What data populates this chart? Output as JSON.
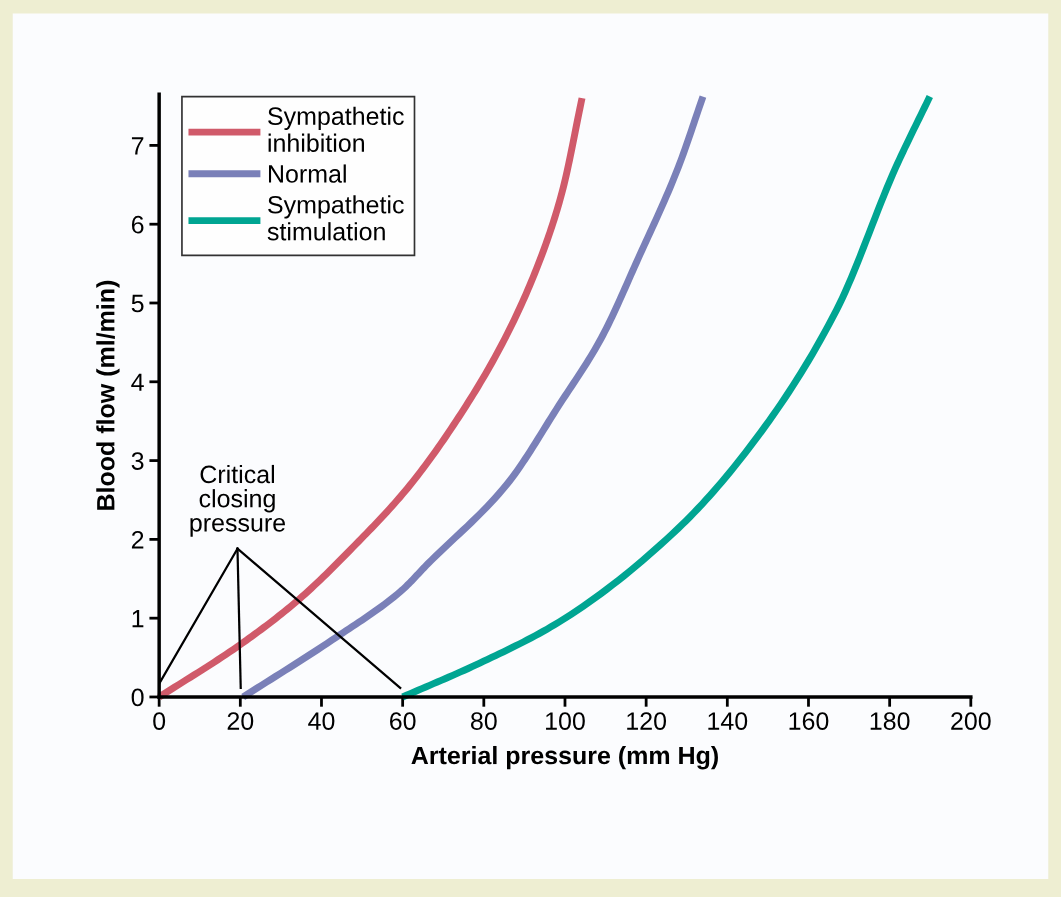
{
  "chart_data": {
    "type": "line",
    "xlabel": "Arterial pressure (mm Hg)",
    "ylabel": "Blood flow (ml/min)",
    "xlim": [
      0,
      200
    ],
    "xticks": [
      0,
      20,
      40,
      60,
      80,
      100,
      120,
      140,
      160,
      180,
      200
    ],
    "ylim": [
      0,
      7.65
    ],
    "yticks": [
      0,
      1,
      2,
      3,
      4,
      5,
      6,
      7
    ],
    "grid": false,
    "legend": "top left",
    "marker": "none",
    "line_style": "solid",
    "series": [
      {
        "name": "Sympathetic\ninhibition",
        "color": "#d05a6a",
        "x": [
          0,
          19.3,
          33.8,
          48.5,
          61.2,
          73.8,
          85.7,
          94.3,
          99.3,
          104.2
        ],
        "values": [
          0,
          0.64,
          1.21,
          1.94,
          2.65,
          3.55,
          4.6,
          5.61,
          6.41,
          7.6
        ]
      },
      {
        "name": "Normal",
        "color": "#7a80b8",
        "x": [
          20.7,
          43.7,
          59.5,
          66.2,
          85.7,
          98.5,
          108.9,
          118,
          127.9,
          134
        ],
        "values": [
          0,
          0.76,
          1.34,
          1.69,
          2.7,
          3.7,
          4.55,
          5.56,
          6.72,
          7.62
        ]
      },
      {
        "name": "Sympathetic\nstimulation",
        "color": "#00a592",
        "x": [
          60,
          79,
          98.5,
          127.9,
          147.4,
          166.9,
          181.5,
          189.9
        ],
        "values": [
          0,
          0.43,
          0.95,
          2.14,
          3.3,
          4.91,
          6.72,
          7.62
        ]
      }
    ],
    "annotations": [
      "Critical\nclosing\npressure"
    ]
  }
}
